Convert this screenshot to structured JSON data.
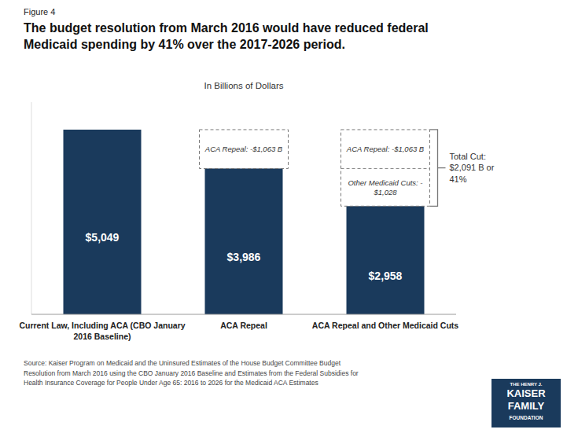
{
  "chart_data": {
    "type": "bar",
    "title": "The budget resolution from March 2016 would have reduced federal\nMedicaid spending by 41% over the 2017-2026 period.",
    "subtitle": "In Billions of Dollars",
    "categories": [
      "Current Law, Including ACA (CBO January\n2016 Baseline)",
      "ACA Repeal",
      "ACA Repeal and Other Medicaid Cuts"
    ],
    "values": [
      5049,
      3986,
      2958
    ],
    "value_labels": [
      "$5,049",
      "$3,986",
      "$2,958"
    ],
    "data_labels": true,
    "color": "#1a3a5c",
    "ylim": [
      0,
      5800
    ],
    "tick_labels": "x",
    "grid": false,
    "annotations": [
      "Figure 4",
      "ACA Repeal: -$1,063 B",
      "ACA Repeal: -$1,063 B",
      "Other Medicaid Cuts: -\n$1,028",
      "Total Cut:\n$2,091  B or\n41%",
      "Source:  Kaiser Program on Medicaid and the Uninsured Estimates of the House Budget Committee Budget\nResolution from March 2016  using the CBO January 2016  Baseline and Estimates from the Federal Subsidies for\nHealth Insurance Coverage for People Under Age 65: 2016  to 2026  for the Medicaid ACA Estimates",
      "THE HENRY J.",
      "KAISER",
      "FAMILY",
      "FOUNDATION"
    ]
  }
}
